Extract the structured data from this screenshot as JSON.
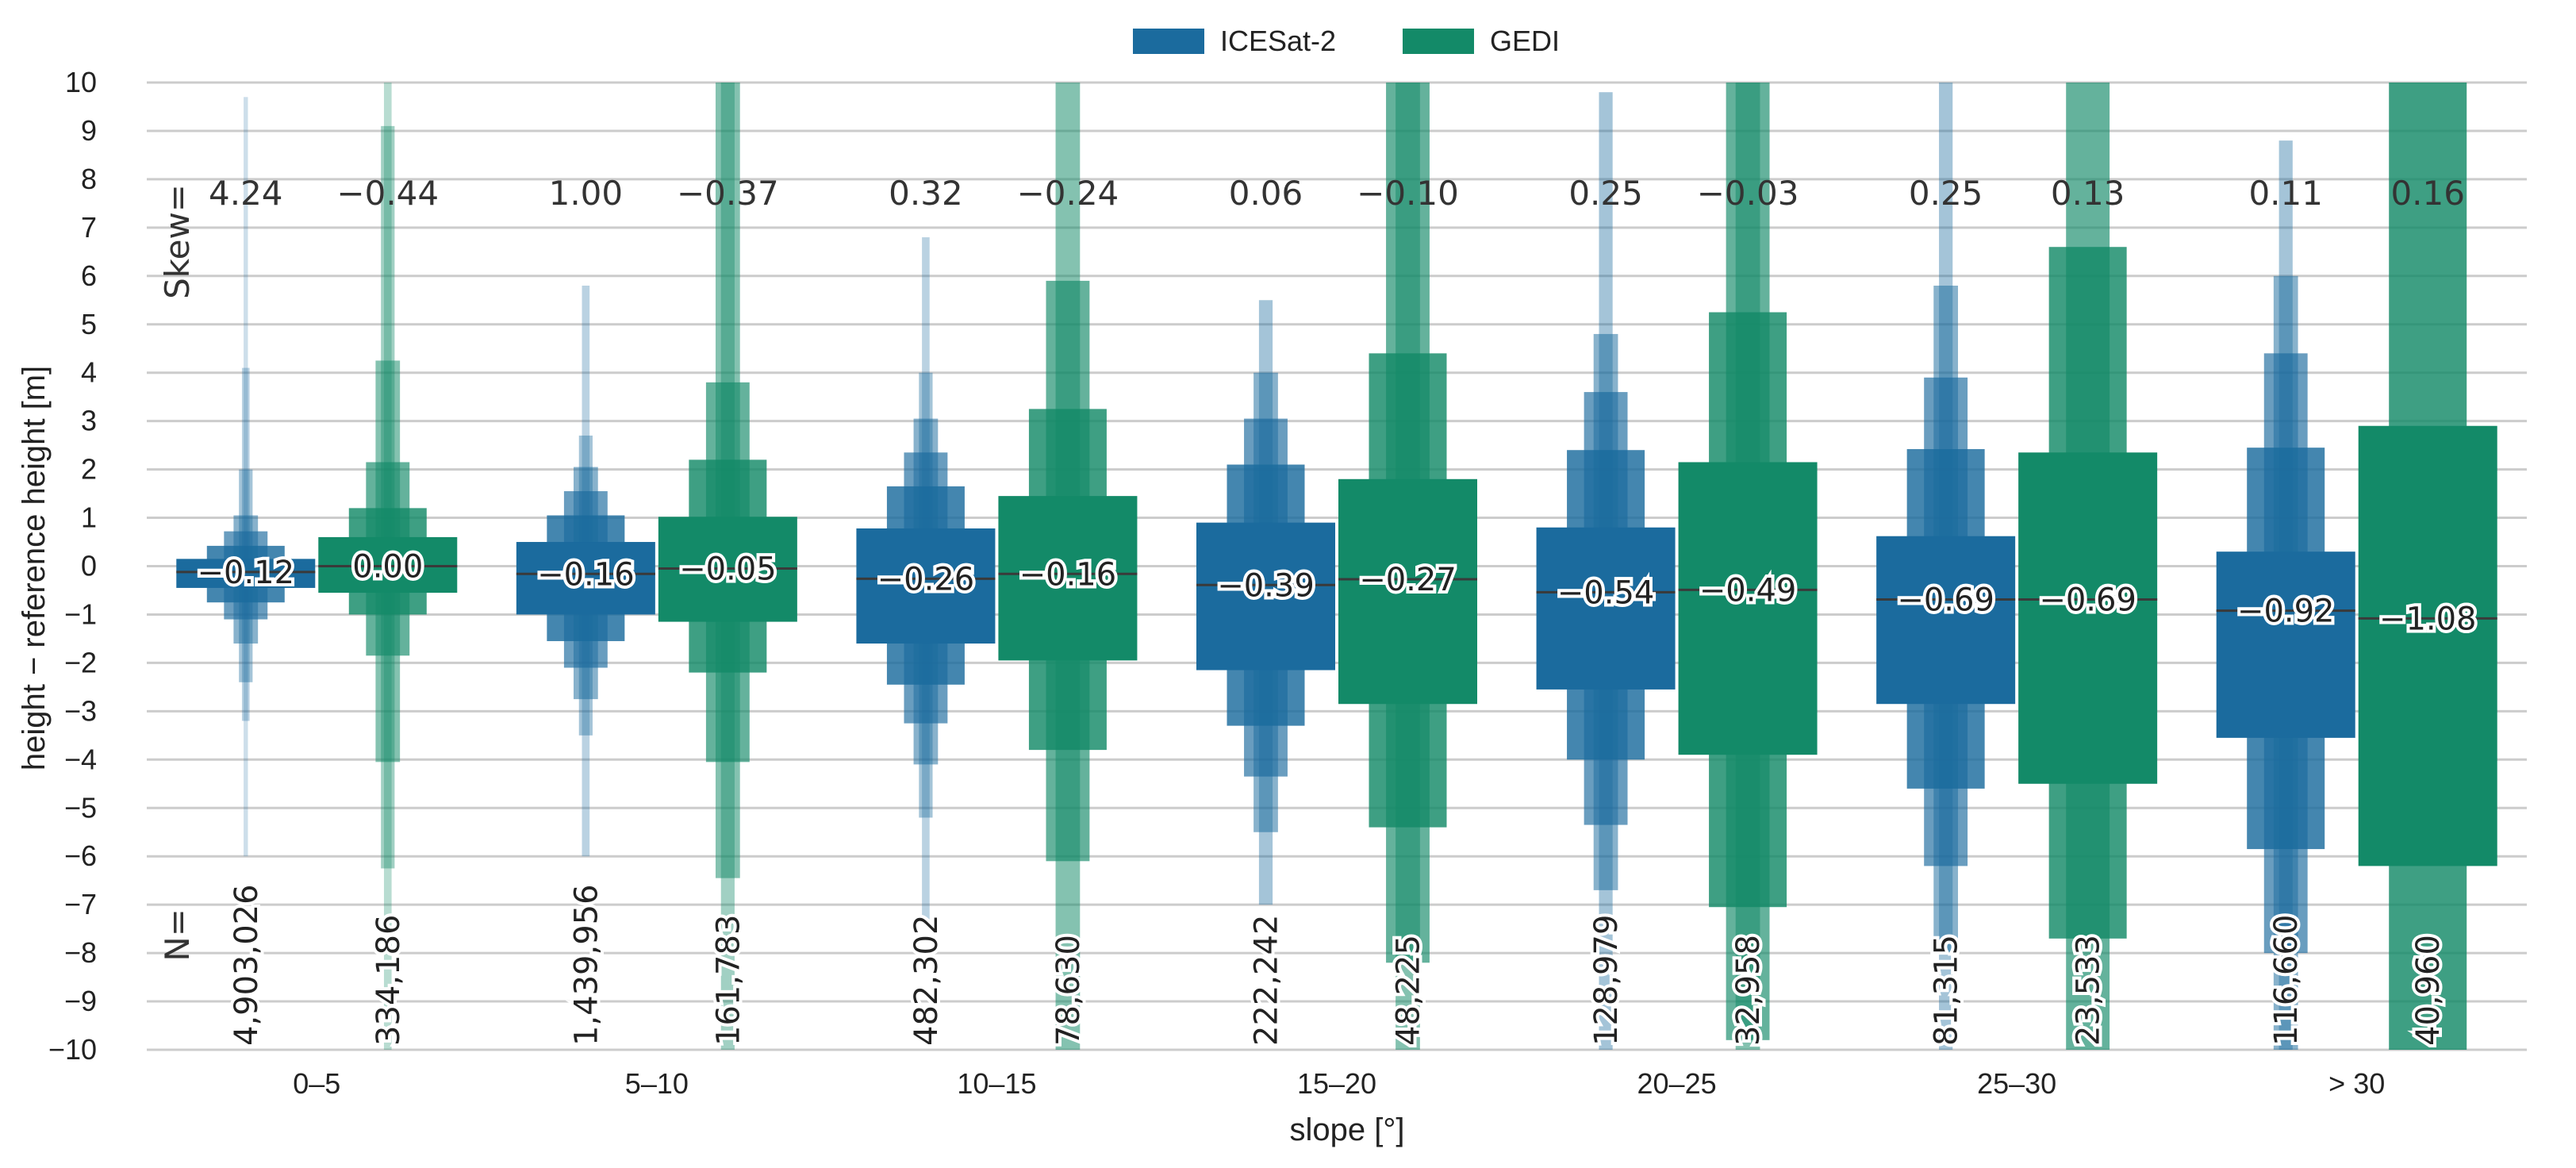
{
  "chart_data": {
    "type": "boxen",
    "title": "",
    "xlabel": "slope [°]",
    "ylabel": "height − reference height [m]",
    "ylim": [
      -10,
      10
    ],
    "yticks": [
      "−10",
      "−9",
      "−8",
      "−7",
      "−6",
      "−5",
      "−4",
      "−3",
      "−2",
      "−1",
      "0",
      "1",
      "2",
      "3",
      "4",
      "5",
      "6",
      "7",
      "8",
      "9",
      "10"
    ],
    "categories": [
      "0–5",
      "5–10",
      "10–15",
      "15–20",
      "20–25",
      "25–30",
      "> 30"
    ],
    "legend": {
      "position": "top-center",
      "entries": [
        "ICESat-2",
        "GEDI"
      ]
    },
    "skew_label": "Skew=",
    "n_label": "N=",
    "series": [
      {
        "name": "ICESat-2",
        "color": "#1b6b9e",
        "medians": [
          -0.12,
          -0.16,
          -0.26,
          -0.39,
          -0.54,
          -0.69,
          -0.92
        ],
        "median_labels": [
          "−0.12",
          "−0.16",
          "−0.26",
          "−0.39",
          "−0.54",
          "−0.69",
          "−0.92"
        ],
        "skew_labels": [
          "4.24",
          "1.00",
          "0.32",
          "0.06",
          "0.25",
          "0.25",
          "0.11"
        ],
        "n_labels": [
          "4,903,026",
          "1,439,956",
          "482,302",
          "222,242",
          "128,979",
          "81,315",
          "116,660"
        ],
        "letter_values": [
          [
            [
              -0.45,
              0.15
            ],
            [
              -0.75,
              0.42
            ],
            [
              -1.1,
              0.72
            ],
            [
              -1.6,
              1.05
            ],
            [
              -2.4,
              2.0
            ],
            [
              -3.2,
              4.1
            ],
            [
              -6.0,
              9.7
            ]
          ],
          [
            [
              -1.0,
              0.5
            ],
            [
              -1.55,
              1.05
            ],
            [
              -2.1,
              1.55
            ],
            [
              -2.75,
              2.05
            ],
            [
              -3.5,
              2.7
            ],
            [
              -6.0,
              5.8
            ]
          ],
          [
            [
              -1.6,
              0.78
            ],
            [
              -2.45,
              1.65
            ],
            [
              -3.25,
              2.35
            ],
            [
              -4.1,
              3.05
            ],
            [
              -5.2,
              4.0
            ],
            [
              -7.3,
              6.8
            ]
          ],
          [
            [
              -2.15,
              0.9
            ],
            [
              -3.3,
              2.1
            ],
            [
              -4.35,
              3.05
            ],
            [
              -5.5,
              4.0
            ],
            [
              -7.0,
              5.5
            ]
          ],
          [
            [
              -2.55,
              0.8
            ],
            [
              -4.0,
              2.4
            ],
            [
              -5.35,
              3.6
            ],
            [
              -6.7,
              4.8
            ],
            [
              -10,
              9.8
            ]
          ],
          [
            [
              -2.85,
              0.62
            ],
            [
              -4.6,
              2.42
            ],
            [
              -6.2,
              3.9
            ],
            [
              -8.0,
              5.8
            ],
            [
              -10,
              10
            ]
          ],
          [
            [
              -3.55,
              0.3
            ],
            [
              -5.85,
              2.45
            ],
            [
              -8.0,
              4.4
            ],
            [
              -10,
              6.0
            ],
            [
              -10,
              8.8
            ]
          ]
        ]
      },
      {
        "name": "GEDI",
        "color": "#138a68",
        "medians": [
          0.0,
          -0.05,
          -0.16,
          -0.27,
          -0.49,
          -0.69,
          -1.08
        ],
        "median_labels": [
          "0.00",
          "−0.05",
          "−0.16",
          "−0.27",
          "−0.49",
          "−0.69",
          "−1.08"
        ],
        "skew_labels": [
          "−0.44",
          "−0.37",
          "−0.24",
          "−0.10",
          "−0.03",
          "0.13",
          "0.16"
        ],
        "n_labels": [
          "334,186",
          "161,783",
          "78,630",
          "48,225",
          "32,958",
          "23,533",
          "40,960"
        ],
        "letter_values": [
          [
            [
              -0.55,
              0.6
            ],
            [
              -1.0,
              1.2
            ],
            [
              -1.85,
              2.15
            ],
            [
              -4.05,
              4.25
            ],
            [
              -6.25,
              9.1
            ],
            [
              -10,
              10
            ]
          ],
          [
            [
              -1.15,
              1.02
            ],
            [
              -2.2,
              2.2
            ],
            [
              -4.05,
              3.8
            ],
            [
              -6.45,
              10
            ],
            [
              -10,
              10
            ]
          ],
          [
            [
              -1.95,
              1.45
            ],
            [
              -3.8,
              3.25
            ],
            [
              -6.1,
              5.9
            ],
            [
              -10,
              10
            ]
          ],
          [
            [
              -2.85,
              1.8
            ],
            [
              -5.4,
              4.4
            ],
            [
              -8.2,
              10
            ],
            [
              -10,
              10
            ]
          ],
          [
            [
              -3.9,
              2.15
            ],
            [
              -7.05,
              5.25
            ],
            [
              -9.8,
              10
            ],
            [
              -10,
              10
            ]
          ],
          [
            [
              -4.5,
              2.35
            ],
            [
              -7.7,
              6.6
            ],
            [
              -10,
              10
            ]
          ],
          [
            [
              -6.2,
              2.9
            ],
            [
              -10,
              10
            ]
          ]
        ]
      }
    ]
  }
}
